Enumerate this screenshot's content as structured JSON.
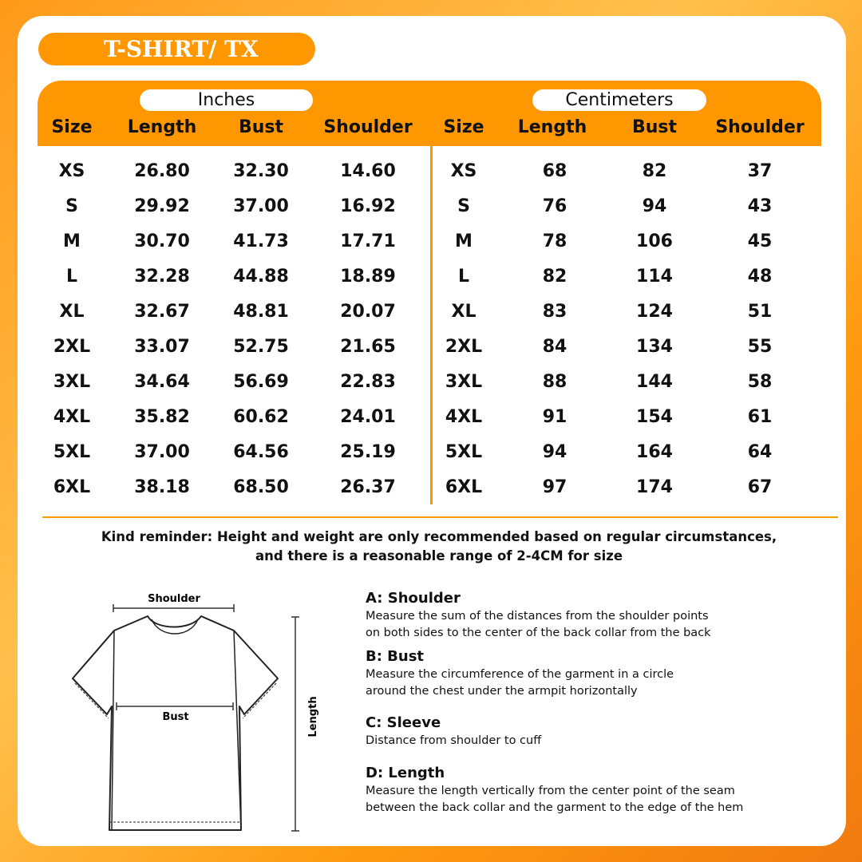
{
  "title": "T-SHIRT/ TX",
  "colors": {
    "accent": "#ff9800",
    "text": "#111111"
  },
  "inches": {
    "label": "Inches",
    "headers": [
      "Size",
      "Length",
      "Bust",
      "Shoulder"
    ],
    "rows": [
      [
        "XS",
        "26.80",
        "32.30",
        "14.60"
      ],
      [
        "S",
        "29.92",
        "37.00",
        "16.92"
      ],
      [
        "M",
        "30.70",
        "41.73",
        "17.71"
      ],
      [
        "L",
        "32.28",
        "44.88",
        "18.89"
      ],
      [
        "XL",
        "32.67",
        "48.81",
        "20.07"
      ],
      [
        "2XL",
        "33.07",
        "52.75",
        "21.65"
      ],
      [
        "3XL",
        "34.64",
        "56.69",
        "22.83"
      ],
      [
        "4XL",
        "35.82",
        "60.62",
        "24.01"
      ],
      [
        "5XL",
        "37.00",
        "64.56",
        "25.19"
      ],
      [
        "6XL",
        "38.18",
        "68.50",
        "26.37"
      ]
    ]
  },
  "centimeters": {
    "label": "Centimeters",
    "headers": [
      "Size",
      "Length",
      "Bust",
      "Shoulder"
    ],
    "rows": [
      [
        "XS",
        "68",
        "82",
        "37"
      ],
      [
        "S",
        "76",
        "94",
        "43"
      ],
      [
        "M",
        "78",
        "106",
        "45"
      ],
      [
        "L",
        "82",
        "114",
        "48"
      ],
      [
        "XL",
        "83",
        "124",
        "51"
      ],
      [
        "2XL",
        "84",
        "134",
        "55"
      ],
      [
        "3XL",
        "88",
        "144",
        "58"
      ],
      [
        "4XL",
        "91",
        "154",
        "61"
      ],
      [
        "5XL",
        "94",
        "164",
        "64"
      ],
      [
        "6XL",
        "97",
        "174",
        "67"
      ]
    ]
  },
  "reminder": [
    "Kind reminder: Height and weight are only recommended based on regular circumstances,",
    "and there is a reasonable range of 2-4CM for size"
  ],
  "diagram": {
    "shoulder": "Shoulder",
    "bust": "Bust",
    "length": "Length"
  },
  "measurements": [
    {
      "title": "A: Shoulder",
      "desc": [
        "Measure the sum of the distances from the shoulder points",
        "on both sides to the center of the back collar from the back"
      ]
    },
    {
      "title": "B: Bust",
      "desc": [
        "Measure the circumference of the garment in a circle",
        "around the chest under the armpit horizontally"
      ]
    },
    {
      "title": "C: Sleeve",
      "desc": [
        "Distance from shoulder to cuff"
      ]
    },
    {
      "title": "D: Length",
      "desc": [
        "Measure the length vertically from the center point of the seam",
        "between the back collar and the garment to the edge of the hem"
      ]
    }
  ]
}
